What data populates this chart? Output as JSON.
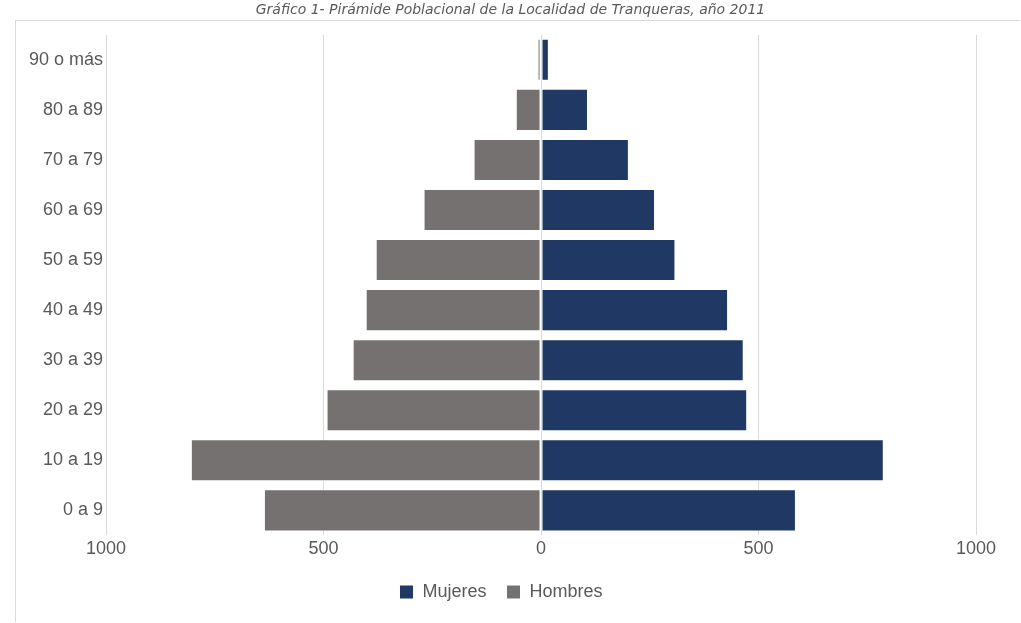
{
  "chart_data": {
    "type": "bar",
    "orientation": "horizontal",
    "stacked": true,
    "title": "Gráfico 1- Pirámide Poblacional de la Localidad de Tranqueras, año 2011",
    "categories": [
      "90 o más",
      "80 a 89",
      "70 a 79",
      "60 a 69",
      "50 a 59",
      "40 a 49",
      "30 a 39",
      "20 a 29",
      "10 a 19",
      "0 a 9"
    ],
    "series": [
      {
        "name": "Mujeres",
        "color": "#203864",
        "values": [
          18,
          108,
          202,
          262,
          309,
          430,
          466,
          474,
          788,
          586
        ]
      },
      {
        "name": "Hombres",
        "color": "#767171",
        "values": [
          -8,
          -58,
          -155,
          -270,
          -380,
          -403,
          -433,
          -493,
          -805,
          -637
        ]
      }
    ],
    "xlim": [
      -1000,
      1000
    ],
    "xticks": [
      {
        "value": -1000,
        "label": "1000"
      },
      {
        "value": -500,
        "label": "500"
      },
      0,
      500,
      1000
    ],
    "grid": "x",
    "legend": "bottom"
  }
}
